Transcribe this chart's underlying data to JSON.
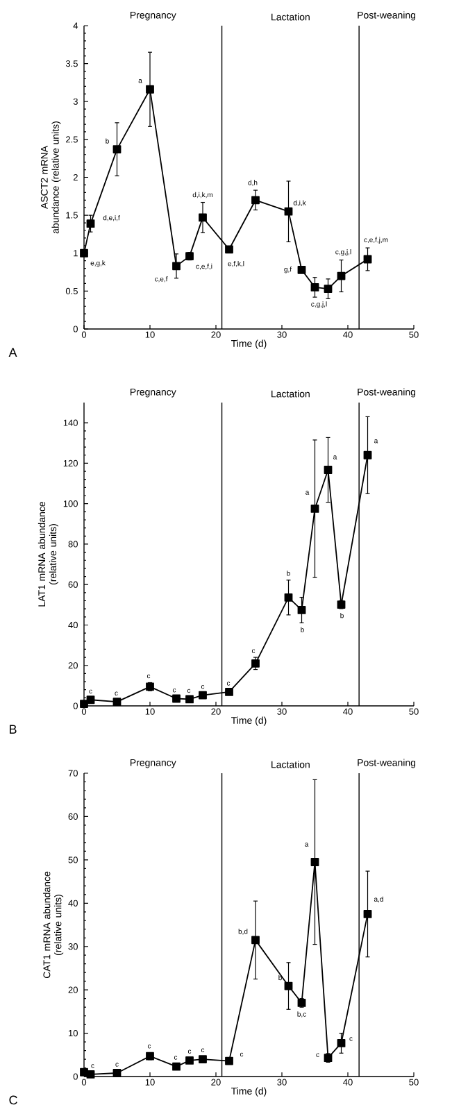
{
  "chart_data": [
    {
      "type": "line",
      "xlabel": "Time (d)",
      "ylabel": "ASCT2 mRNA abundance (relative units)",
      "color": "#000000",
      "marker": "square",
      "x": [
        0,
        1,
        5,
        10,
        14,
        16,
        18,
        22,
        26,
        31,
        33,
        35,
        37,
        39,
        43
      ],
      "values": [
        1.0,
        1.39,
        2.37,
        3.16,
        0.83,
        0.96,
        1.47,
        1.05,
        1.7,
        1.55,
        0.78,
        0.55,
        0.53,
        0.7,
        0.92
      ],
      "errors": [
        0.03,
        0.11,
        0.35,
        0.49,
        0.16,
        0.05,
        0.2,
        0.04,
        0.13,
        0.4,
        0.03,
        0.13,
        0.13,
        0.21,
        0.15
      ],
      "value_labels": [
        "e,g,k",
        "d,e,i,f",
        "b",
        "a",
        "c,e,f",
        "c,e,f,i",
        "d,i,k,m",
        "e,f,k,l",
        "d,h",
        "d,i,k",
        "g,f",
        "c,g,j,l",
        null,
        "c,g,j,l",
        "c,e,f,j,m"
      ],
      "xlim": [
        0,
        50
      ],
      "ylim": [
        0,
        4
      ],
      "xticks": [
        0,
        10,
        20,
        30,
        40,
        50
      ],
      "yticks": [
        0,
        0.5,
        1,
        1.5,
        2,
        2.5,
        3,
        3.5,
        4
      ],
      "ref_lines": [
        {
          "axis": "x",
          "value": 20.9
        },
        {
          "axis": "x",
          "value": 41.7
        }
      ],
      "annotations": [
        "Pregnancy",
        "Lactation",
        "Post-weaning",
        "A"
      ]
    },
    {
      "type": "line",
      "xlabel": "Time (d)",
      "ylabel": "LAT1 mRNA abundance (relative units)",
      "color": "#000000",
      "marker": "square",
      "x": [
        0,
        1,
        5,
        10,
        14,
        16,
        18,
        22,
        26,
        31,
        33,
        35,
        37,
        39,
        43
      ],
      "values": [
        1,
        3,
        2,
        9.5,
        3.6,
        3.3,
        5.3,
        6.9,
        21,
        53.6,
        47.4,
        97.5,
        116.7,
        50.1,
        124
      ],
      "errors": [
        null,
        1,
        1,
        2,
        1,
        1,
        1,
        1,
        3,
        8.6,
        6.3,
        34,
        16,
        2,
        19
      ],
      "value_labels": [
        null,
        "c",
        "c",
        "c",
        "c",
        "c",
        "c",
        "c",
        "c",
        "b",
        "b",
        "a",
        "a",
        "b",
        "a"
      ],
      "xlim": [
        0,
        50
      ],
      "ylim": [
        0,
        150
      ],
      "xticks": [
        0,
        10,
        20,
        30,
        40,
        50
      ],
      "yticks": [
        0,
        20,
        40,
        60,
        80,
        100,
        120,
        140
      ],
      "ref_lines": [
        {
          "axis": "x",
          "value": 20.9
        },
        {
          "axis": "x",
          "value": 41.7
        }
      ],
      "annotations": [
        "Pregnancy",
        "Lactation",
        "Post-weaning",
        "B"
      ]
    },
    {
      "type": "line",
      "xlabel": "Time (d)",
      "ylabel": "CAT1 mRNA abundance (relative units)",
      "color": "#000000",
      "marker": "square",
      "x": [
        0,
        1,
        5,
        10,
        14,
        16,
        18,
        22,
        26,
        31,
        33,
        35,
        37,
        39,
        43
      ],
      "values": [
        1.0,
        0.5,
        0.8,
        4.7,
        2.3,
        3.7,
        4.0,
        3.6,
        31.5,
        20.9,
        17,
        49.5,
        4.3,
        7.7,
        37.5
      ],
      "errors": [
        null,
        null,
        null,
        0.8,
        0.6,
        0.6,
        0.6,
        0.6,
        9,
        5.4,
        1,
        19,
        1,
        2.3,
        9.9
      ],
      "value_labels": [
        null,
        "c",
        "c",
        "c",
        "c",
        "c",
        "c",
        "c",
        "b,d",
        "b",
        "b,c",
        "a",
        "c",
        "c",
        "a,d"
      ],
      "xlim": [
        0,
        50
      ],
      "ylim": [
        0,
        70
      ],
      "xticks": [
        0,
        10,
        20,
        30,
        40,
        50
      ],
      "yticks": [
        0,
        10,
        20,
        30,
        40,
        50,
        60,
        70
      ],
      "ref_lines": [
        {
          "axis": "x",
          "value": 20.9
        },
        {
          "axis": "x",
          "value": 41.7
        }
      ],
      "annotations": [
        "Pregnancy",
        "Lactation",
        "Post-weaning",
        "C"
      ]
    }
  ]
}
